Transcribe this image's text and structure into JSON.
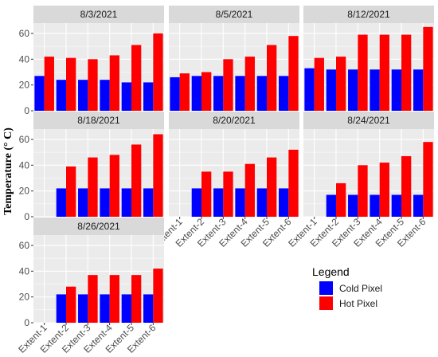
{
  "chart_data": {
    "type": "bar",
    "ylabel": "Temperature (° C)",
    "ylim": [
      0,
      68
    ],
    "yticks": [
      0,
      20,
      40,
      60
    ],
    "categories": [
      "Extent-1",
      "Extent-2",
      "Extent-3",
      "Extent-4",
      "Extent-5",
      "Extent-6"
    ],
    "legend": {
      "title": "Legend",
      "position": "bottom-right",
      "entries": [
        {
          "name": "Cold Pixel",
          "color": "#0000ff"
        },
        {
          "name": "Hot Pixel",
          "color": "#ff0000"
        }
      ]
    },
    "panels": [
      {
        "title": "8/3/2021",
        "cold": [
          27,
          24,
          24,
          24,
          22,
          22
        ],
        "hot": [
          42,
          41,
          40,
          43,
          51,
          60
        ]
      },
      {
        "title": "8/5/2021",
        "cold": [
          26,
          27,
          27,
          27,
          27,
          27
        ],
        "hot": [
          29,
          30,
          40,
          42,
          51,
          58
        ]
      },
      {
        "title": "8/12/2021",
        "cold": [
          33,
          32,
          32,
          32,
          32,
          32
        ],
        "hot": [
          41,
          42,
          59,
          59,
          59,
          65
        ]
      },
      {
        "title": "8/18/2021",
        "cold": [
          null,
          22,
          22,
          22,
          22,
          22
        ],
        "hot": [
          null,
          39,
          46,
          48,
          56,
          64
        ]
      },
      {
        "title": "8/20/2021",
        "cold": [
          null,
          22,
          22,
          22,
          22,
          22
        ],
        "hot": [
          null,
          35,
          35,
          41,
          46,
          52
        ]
      },
      {
        "title": "8/24/2021",
        "cold": [
          null,
          17,
          17,
          17,
          17,
          17
        ],
        "hot": [
          null,
          26,
          40,
          42,
          47,
          58
        ]
      },
      {
        "title": "8/26/2021",
        "cold": [
          null,
          22,
          22,
          22,
          22,
          22
        ],
        "hot": [
          null,
          28,
          37,
          37,
          37,
          42
        ]
      }
    ],
    "grid": true,
    "colors": {
      "cold": "#0000ff",
      "hot": "#ff0000",
      "panel_bg": "#ebebeb",
      "strip_bg": "#d9d9d9",
      "grid": "#ffffff"
    }
  }
}
